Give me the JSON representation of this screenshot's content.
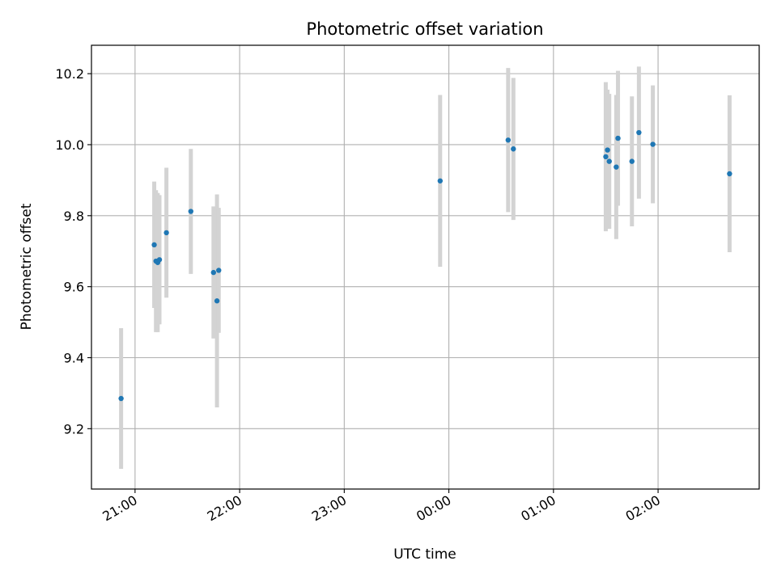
{
  "chart_data": {
    "type": "scatter",
    "title": "Photometric offset variation",
    "xlabel": "UTC time",
    "ylabel": "Photometric offset",
    "x_axis_type": "time",
    "xlim": [
      "20:35",
      "02:58"
    ],
    "ylim": [
      9.03,
      10.28
    ],
    "x_ticks": [
      "21:00",
      "22:00",
      "23:00",
      "00:00",
      "01:00",
      "02:00"
    ],
    "y_ticks": [
      9.2,
      9.4,
      9.6,
      9.8,
      10.0,
      10.2
    ],
    "grid": true,
    "point_color": "#1f77b4",
    "errorbar_color": "#d3d3d3",
    "series": [
      {
        "points": [
          {
            "x": "20:52",
            "y": 9.285,
            "err": 0.198
          },
          {
            "x": "21:11",
            "y": 9.718,
            "err": 0.178
          },
          {
            "x": "21:12",
            "y": 9.672,
            "err": 0.2
          },
          {
            "x": "21:13",
            "y": 9.668,
            "err": 0.196
          },
          {
            "x": "21:14",
            "y": 9.676,
            "err": 0.182
          },
          {
            "x": "21:18",
            "y": 9.752,
            "err": 0.183
          },
          {
            "x": "21:32",
            "y": 9.812,
            "err": 0.176
          },
          {
            "x": "21:45",
            "y": 9.64,
            "err": 0.186
          },
          {
            "x": "21:47",
            "y": 9.56,
            "err": 0.3
          },
          {
            "x": "21:48",
            "y": 9.646,
            "err": 0.176
          },
          {
            "x": "23:55",
            "y": 9.898,
            "err": 0.242
          },
          {
            "x": "00:34",
            "y": 10.013,
            "err": 0.203
          },
          {
            "x": "00:37",
            "y": 9.988,
            "err": 0.2
          },
          {
            "x": "01:30",
            "y": 9.966,
            "err": 0.21
          },
          {
            "x": "01:31",
            "y": 9.985,
            "err": 0.17
          },
          {
            "x": "01:32",
            "y": 9.953,
            "err": 0.19
          },
          {
            "x": "01:36",
            "y": 9.937,
            "err": 0.203
          },
          {
            "x": "01:37",
            "y": 10.018,
            "err": 0.19
          },
          {
            "x": "01:45",
            "y": 9.953,
            "err": 0.183
          },
          {
            "x": "01:49",
            "y": 10.034,
            "err": 0.186
          },
          {
            "x": "01:57",
            "y": 10.001,
            "err": 0.166
          },
          {
            "x": "02:41",
            "y": 9.918,
            "err": 0.221
          }
        ]
      }
    ]
  }
}
